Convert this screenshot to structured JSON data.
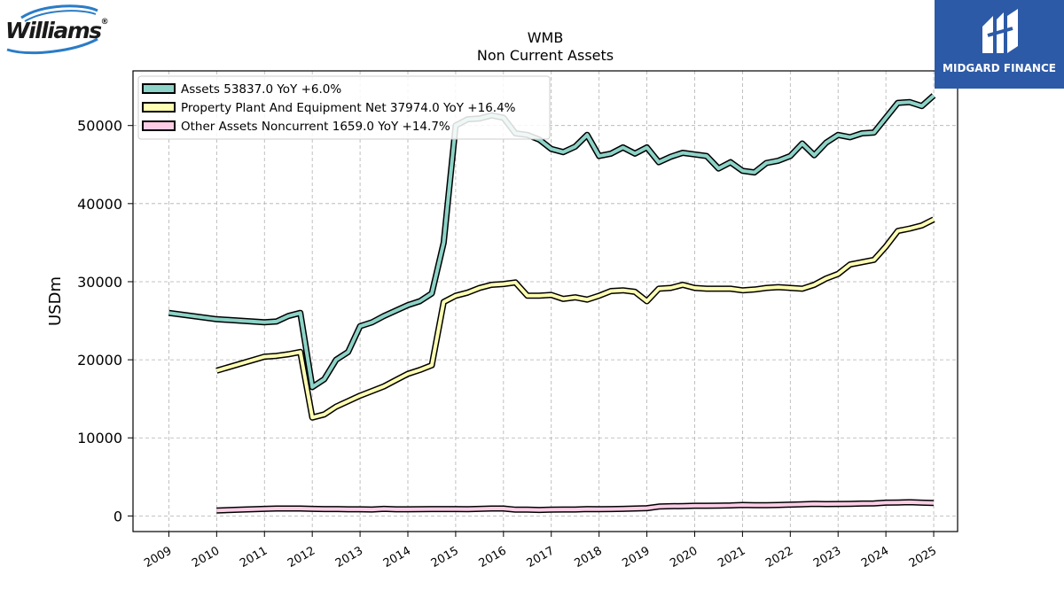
{
  "logos": {
    "left_wordmark": "Williams",
    "left_mark": "®",
    "right_brand": "MIDGARD FINANCE"
  },
  "chart_data": {
    "type": "line",
    "title": "WMB",
    "subtitle": "Non Current  Assets",
    "ylabel": "USDm",
    "xlabel": "",
    "ylim": [
      -2000,
      57000
    ],
    "xlim": [
      2008.25,
      2025.5
    ],
    "yticks": [
      0,
      10000,
      20000,
      30000,
      40000,
      50000
    ],
    "xticks": [
      2009,
      2010,
      2011,
      2012,
      2013,
      2014,
      2015,
      2016,
      2017,
      2018,
      2019,
      2020,
      2021,
      2022,
      2023,
      2024,
      2025
    ],
    "grid": true,
    "legend_position": "top-left",
    "series": [
      {
        "name": "Assets  53837.0 YoY +6.0%",
        "color": "#8dd3c7",
        "points": [
          [
            2009.0,
            26000
          ],
          [
            2010.0,
            25200
          ],
          [
            2010.5,
            25000
          ],
          [
            2011.0,
            24800
          ],
          [
            2011.25,
            24900
          ],
          [
            2011.5,
            25600
          ],
          [
            2011.75,
            26000
          ],
          [
            2012.0,
            16500
          ],
          [
            2012.25,
            17500
          ],
          [
            2012.5,
            20000
          ],
          [
            2012.75,
            21000
          ],
          [
            2013.0,
            24300
          ],
          [
            2013.25,
            24800
          ],
          [
            2013.5,
            25600
          ],
          [
            2013.75,
            26300
          ],
          [
            2014.0,
            27000
          ],
          [
            2014.25,
            27500
          ],
          [
            2014.5,
            28500
          ],
          [
            2014.75,
            35000
          ],
          [
            2015.0,
            50000
          ],
          [
            2015.25,
            50800
          ],
          [
            2015.5,
            50900
          ],
          [
            2015.75,
            51300
          ],
          [
            2016.0,
            51000
          ],
          [
            2016.25,
            49000
          ],
          [
            2016.5,
            48800
          ],
          [
            2016.75,
            48200
          ],
          [
            2017.0,
            47000
          ],
          [
            2017.25,
            46600
          ],
          [
            2017.5,
            47300
          ],
          [
            2017.75,
            48800
          ],
          [
            2018.0,
            46100
          ],
          [
            2018.25,
            46400
          ],
          [
            2018.5,
            47200
          ],
          [
            2018.75,
            46400
          ],
          [
            2019.0,
            47200
          ],
          [
            2019.25,
            45300
          ],
          [
            2019.5,
            46000
          ],
          [
            2019.75,
            46500
          ],
          [
            2020.0,
            46300
          ],
          [
            2020.25,
            46100
          ],
          [
            2020.5,
            44500
          ],
          [
            2020.75,
            45300
          ],
          [
            2021.0,
            44200
          ],
          [
            2021.25,
            44000
          ],
          [
            2021.5,
            45200
          ],
          [
            2021.75,
            45500
          ],
          [
            2022.0,
            46100
          ],
          [
            2022.25,
            47700
          ],
          [
            2022.5,
            46200
          ],
          [
            2022.75,
            47800
          ],
          [
            2023.0,
            48800
          ],
          [
            2023.25,
            48500
          ],
          [
            2023.5,
            49000
          ],
          [
            2023.75,
            49100
          ],
          [
            2024.0,
            51000
          ],
          [
            2024.25,
            52900
          ],
          [
            2024.5,
            53000
          ],
          [
            2024.75,
            52500
          ],
          [
            2025.0,
            53837
          ]
        ]
      },
      {
        "name": "Property Plant And Equipment Net  37974.0 YoY +16.4%",
        "color": "#ffffb3",
        "points": [
          [
            2010.0,
            18600
          ],
          [
            2010.5,
            19500
          ],
          [
            2011.0,
            20400
          ],
          [
            2011.25,
            20500
          ],
          [
            2011.5,
            20700
          ],
          [
            2011.75,
            21000
          ],
          [
            2012.0,
            12600
          ],
          [
            2012.25,
            13000
          ],
          [
            2012.5,
            14000
          ],
          [
            2012.75,
            14700
          ],
          [
            2013.0,
            15400
          ],
          [
            2013.25,
            16000
          ],
          [
            2013.5,
            16600
          ],
          [
            2013.75,
            17400
          ],
          [
            2014.0,
            18200
          ],
          [
            2014.25,
            18700
          ],
          [
            2014.5,
            19300
          ],
          [
            2014.75,
            27400
          ],
          [
            2015.0,
            28200
          ],
          [
            2015.25,
            28600
          ],
          [
            2015.5,
            29200
          ],
          [
            2015.75,
            29600
          ],
          [
            2016.0,
            29700
          ],
          [
            2016.25,
            29900
          ],
          [
            2016.5,
            28200
          ],
          [
            2016.75,
            28200
          ],
          [
            2017.0,
            28300
          ],
          [
            2017.25,
            27800
          ],
          [
            2017.5,
            28000
          ],
          [
            2017.75,
            27700
          ],
          [
            2018.0,
            28200
          ],
          [
            2018.25,
            28800
          ],
          [
            2018.5,
            28900
          ],
          [
            2018.75,
            28700
          ],
          [
            2019.0,
            27500
          ],
          [
            2019.25,
            29100
          ],
          [
            2019.5,
            29200
          ],
          [
            2019.75,
            29600
          ],
          [
            2020.0,
            29200
          ],
          [
            2020.25,
            29100
          ],
          [
            2020.5,
            29100
          ],
          [
            2020.75,
            29100
          ],
          [
            2021.0,
            28900
          ],
          [
            2021.25,
            29000
          ],
          [
            2021.5,
            29200
          ],
          [
            2021.75,
            29300
          ],
          [
            2022.0,
            29200
          ],
          [
            2022.25,
            29100
          ],
          [
            2022.5,
            29600
          ],
          [
            2022.75,
            30400
          ],
          [
            2023.0,
            31000
          ],
          [
            2023.25,
            32200
          ],
          [
            2023.5,
            32500
          ],
          [
            2023.75,
            32800
          ],
          [
            2024.0,
            34500
          ],
          [
            2024.25,
            36500
          ],
          [
            2024.5,
            36800
          ],
          [
            2024.75,
            37200
          ],
          [
            2025.0,
            37974
          ]
        ]
      },
      {
        "name": "Other Assets Noncurrent  1659.0 YoY +14.7%",
        "color": "#fccde5",
        "points": [
          [
            2010.0,
            700
          ],
          [
            2010.5,
            800
          ],
          [
            2011.0,
            900
          ],
          [
            2011.25,
            950
          ],
          [
            2011.5,
            950
          ],
          [
            2011.75,
            950
          ],
          [
            2012.0,
            900
          ],
          [
            2012.25,
            880
          ],
          [
            2012.5,
            880
          ],
          [
            2012.75,
            850
          ],
          [
            2013.0,
            850
          ],
          [
            2013.25,
            830
          ],
          [
            2013.5,
            900
          ],
          [
            2013.75,
            850
          ],
          [
            2014.0,
            850
          ],
          [
            2014.25,
            860
          ],
          [
            2014.5,
            880
          ],
          [
            2014.75,
            880
          ],
          [
            2015.0,
            880
          ],
          [
            2015.25,
            860
          ],
          [
            2015.5,
            900
          ],
          [
            2015.75,
            950
          ],
          [
            2016.0,
            950
          ],
          [
            2016.25,
            800
          ],
          [
            2016.5,
            800
          ],
          [
            2016.75,
            770
          ],
          [
            2017.0,
            800
          ],
          [
            2017.25,
            820
          ],
          [
            2017.5,
            830
          ],
          [
            2017.75,
            880
          ],
          [
            2018.0,
            860
          ],
          [
            2018.25,
            880
          ],
          [
            2018.5,
            900
          ],
          [
            2018.75,
            950
          ],
          [
            2019.0,
            1000
          ],
          [
            2019.25,
            1200
          ],
          [
            2019.5,
            1250
          ],
          [
            2019.75,
            1270
          ],
          [
            2020.0,
            1300
          ],
          [
            2020.25,
            1300
          ],
          [
            2020.5,
            1330
          ],
          [
            2020.75,
            1350
          ],
          [
            2021.0,
            1400
          ],
          [
            2021.25,
            1380
          ],
          [
            2021.5,
            1370
          ],
          [
            2021.75,
            1400
          ],
          [
            2022.0,
            1450
          ],
          [
            2022.25,
            1500
          ],
          [
            2022.5,
            1550
          ],
          [
            2022.75,
            1520
          ],
          [
            2023.0,
            1530
          ],
          [
            2023.25,
            1550
          ],
          [
            2023.5,
            1580
          ],
          [
            2023.75,
            1600
          ],
          [
            2024.0,
            1700
          ],
          [
            2024.25,
            1720
          ],
          [
            2024.5,
            1750
          ],
          [
            2024.75,
            1700
          ],
          [
            2025.0,
            1659
          ]
        ]
      }
    ]
  }
}
